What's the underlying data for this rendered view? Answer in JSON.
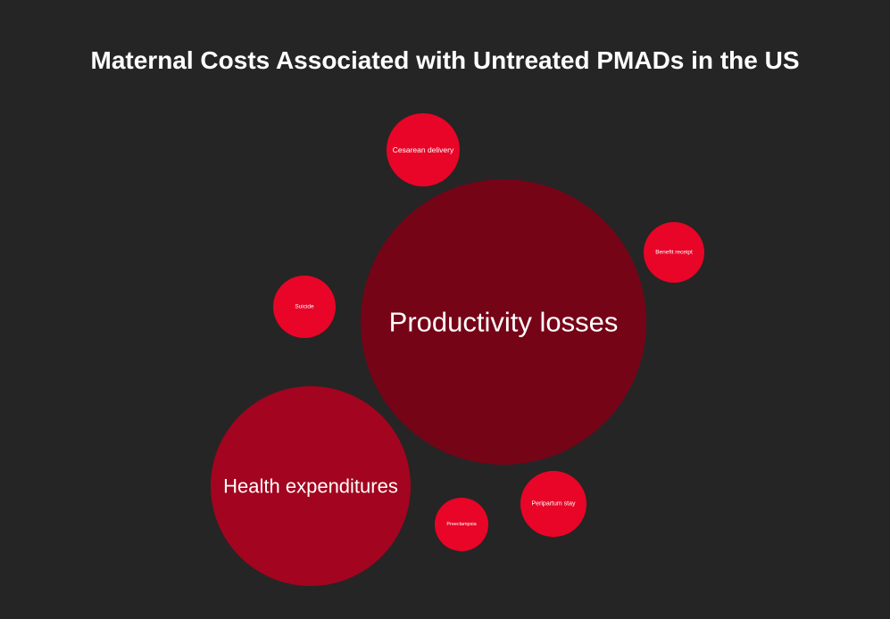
{
  "chart_data": {
    "type": "bubble",
    "title": "Maternal Costs Associated with Untreated PMADs in the US",
    "colors": {
      "background": "#252525",
      "large": "#760417",
      "medium": "#a3041f",
      "small": "#e80527",
      "text": "#ffffff"
    },
    "bubbles": [
      {
        "label": "Productivity losses",
        "size": 160,
        "color": "#760417"
      },
      {
        "label": "Health expenditures",
        "size": 112,
        "color": "#a3041f"
      },
      {
        "label": "Cesarean delivery",
        "size": 41,
        "color": "#e80527"
      },
      {
        "label": "Benefit receipt",
        "size": 34,
        "color": "#e80527"
      },
      {
        "label": "Suicide",
        "size": 35,
        "color": "#e80527"
      },
      {
        "label": "Peripartum stay",
        "size": 37,
        "color": "#e80527"
      },
      {
        "label": "Preeclampsia",
        "size": 30,
        "color": "#e80527"
      }
    ]
  }
}
